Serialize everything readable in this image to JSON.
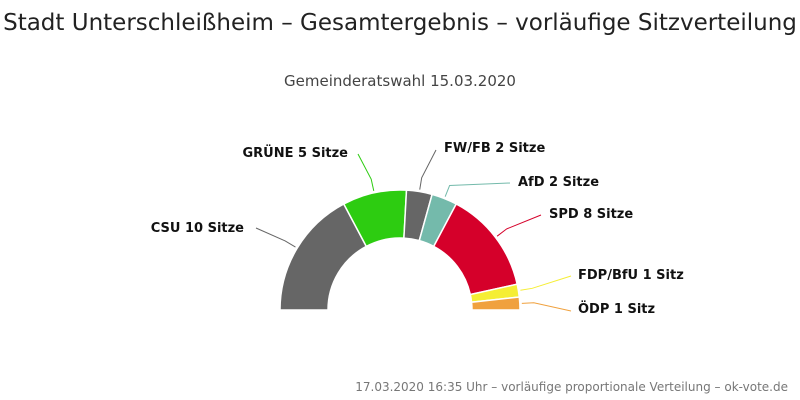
{
  "chart_data": {
    "type": "pie",
    "variant": "semi-circle donut (parliament seat distribution)",
    "title": "Stadt Unterschleißheim – Gesamtergebnis – vorläufige Sitzverteilung",
    "subtitle": "Gemeinderatswahl 15.03.2020",
    "credits": "17.03.2020 16:35 Uhr – vorläufige proportionale Verteilung – ok-vote.de",
    "legend": "none",
    "categories": [
      "CSU",
      "GRÜNE",
      "FW/FB",
      "AfD",
      "SPD",
      "FDP/BfU",
      "ÖDP"
    ],
    "values": [
      10,
      5,
      2,
      2,
      8,
      1,
      1
    ],
    "labels": [
      "CSU 10 Sitze",
      "GRÜNE 5 Sitze",
      "FW/FB 2 Sitze",
      "AfD 2 Sitze",
      "SPD 8 Sitze",
      "FDP/BfU 1 Sitz",
      "ÖDP 1 Sitz"
    ],
    "colors": [
      "#666666",
      "#2dcc11",
      "#666666",
      "#74baab",
      "#d5002a",
      "#f5ee34",
      "#f0a13e"
    ]
  }
}
